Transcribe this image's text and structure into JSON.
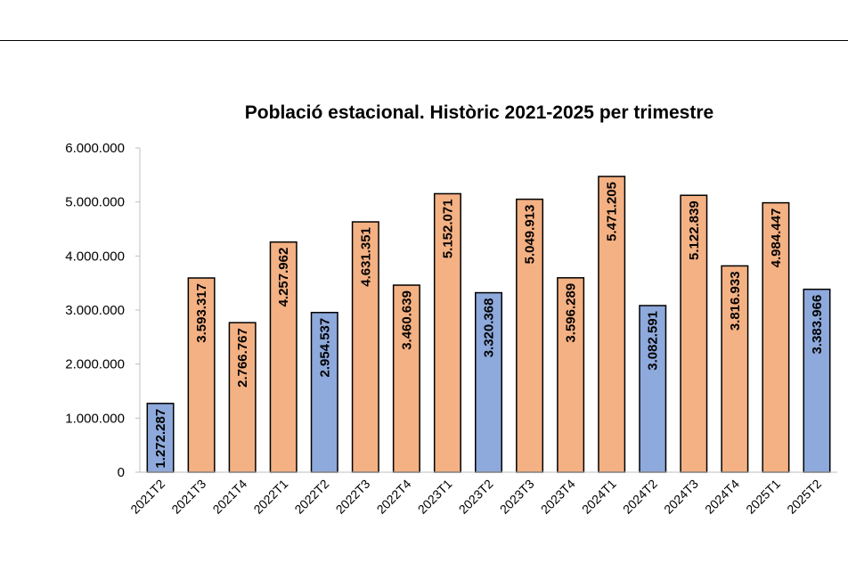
{
  "chart_data": {
    "type": "bar",
    "title": "Població estacional. Històric 2021-2025 per trimestre",
    "xlabel": "",
    "ylabel": "",
    "ylim": [
      0,
      6000000
    ],
    "yticks": [
      "0",
      "1.000.000",
      "2.000.000",
      "3.000.000",
      "4.000.000",
      "5.000.000",
      "6.000.000"
    ],
    "grid": false,
    "legend": "none",
    "categories": [
      "2021T2",
      "2021T3",
      "2021T4",
      "2022T1",
      "2022T2",
      "2022T3",
      "2022T4",
      "2023T1",
      "2023T2",
      "2023T3",
      "2023T4",
      "2024T1",
      "2024T2",
      "2024T3",
      "2024T4",
      "2025T1",
      "2025T2"
    ],
    "values": [
      1272287,
      3593317,
      2766767,
      4257962,
      2954537,
      4631351,
      3460639,
      5152071,
      3320368,
      5049913,
      3596289,
      5471205,
      3082591,
      5122839,
      3816933,
      4984447,
      3383966
    ],
    "data_labels": [
      "1.272.287",
      "3.593.317",
      "2.766.767",
      "4.257.962",
      "2.954.537",
      "4.631.351",
      "3.460.639",
      "5.152.071",
      "3.320.368",
      "5.049.913",
      "3.596.289",
      "5.471.205",
      "3.082.591",
      "5.122.839",
      "3.816.933",
      "4.984.447",
      "3.383.966"
    ],
    "bar_colors": [
      "#8ea9db",
      "#f4b183",
      "#f4b183",
      "#f4b183",
      "#8ea9db",
      "#f4b183",
      "#f4b183",
      "#f4b183",
      "#8ea9db",
      "#f4b183",
      "#f4b183",
      "#f4b183",
      "#8ea9db",
      "#f4b183",
      "#f4b183",
      "#f4b183",
      "#8ea9db"
    ]
  },
  "colors": {
    "blue_bar": "#8ea9db",
    "orange_bar": "#f4b183",
    "outline": "#000000"
  }
}
